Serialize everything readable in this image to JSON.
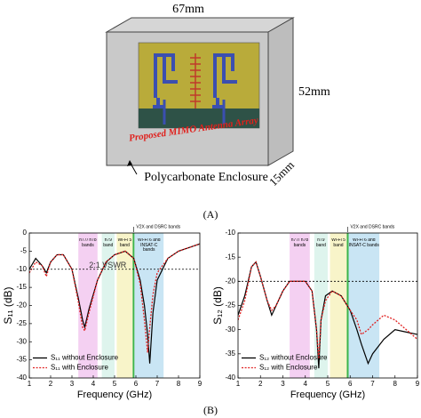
{
  "diagram": {
    "width_label": "67mm",
    "height_label": "52mm",
    "depth_label": "15mm",
    "antenna_label": "Proposed MIMO Antenna Array",
    "enclosure_label": "Polycarbonate Enclosure",
    "panel_label": "(A)"
  },
  "chart_panel_label": "(B)",
  "chart_data": [
    {
      "type": "line",
      "x_label": "Frequency (GHz)",
      "y_label": "S₁₁ (dB)",
      "xlim": [
        1,
        9
      ],
      "xticks": [
        1,
        2,
        3,
        4,
        5,
        6,
        7,
        8,
        9
      ],
      "ylim": [
        -40,
        0
      ],
      "yticks": [
        0,
        -5,
        -10,
        -15,
        -20,
        -25,
        -30,
        -35,
        -40
      ],
      "x": [
        1,
        1.3,
        1.6,
        1.8,
        2.0,
        2.3,
        2.6,
        3.0,
        3.3,
        3.5,
        3.6,
        3.8,
        4.2,
        4.6,
        5.0,
        5.5,
        5.9,
        6.2,
        6.4,
        6.55,
        6.65,
        6.8,
        7.0,
        7.5,
        8,
        8.5,
        9
      ],
      "series": [
        {
          "name": "S₁₁ without Enclosure",
          "color": "#000000",
          "style": "solid",
          "values": [
            -10,
            -7,
            -9,
            -11,
            -8,
            -6,
            -6,
            -10,
            -18,
            -24,
            -26,
            -21,
            -13,
            -8,
            -6,
            -5,
            -7,
            -13,
            -20,
            -28,
            -36,
            -22,
            -13,
            -7,
            -5,
            -4,
            -3
          ]
        },
        {
          "name": "S₁₁ with Enclosure",
          "color": "#e02020",
          "style": "dotted",
          "values": [
            -11,
            -8,
            -9,
            -12,
            -8,
            -6,
            -6,
            -10,
            -19,
            -26,
            -27,
            -22,
            -13,
            -8,
            -6,
            -5,
            -7,
            -14,
            -24,
            -33,
            -26,
            -17,
            -11,
            -7,
            -5,
            -4,
            -3
          ]
        }
      ],
      "bands": [
        {
          "name": "n77/ n78 bands",
          "x": [
            3.3,
            4.2
          ],
          "color": "#f2c8f0"
        },
        {
          "name": "n79 band",
          "x": [
            4.4,
            5.0
          ],
          "color": "#d8f2ea"
        },
        {
          "name": "Wi-Fi 5 band",
          "x": [
            5.1,
            5.85
          ],
          "color": "#f7f2c0"
        },
        {
          "name": "Wi-Fi 6 and INSAT-C bands",
          "x": [
            5.93,
            7.3
          ],
          "color": "#bfe0f2"
        }
      ],
      "marker_band": {
        "name": "V2X and DSRC bands",
        "x": [
          5.85,
          5.93
        ],
        "color": "#3cb44b"
      },
      "reference_line": {
        "value": -10,
        "label": "2:1 VSWR"
      },
      "legend": "lower left"
    },
    {
      "type": "line",
      "x_label": "Frequency (GHz)",
      "y_label": "S₁₂ (dB)",
      "xlim": [
        1,
        9
      ],
      "xticks": [
        1,
        2,
        3,
        4,
        5,
        6,
        7,
        8,
        9
      ],
      "ylim": [
        -40,
        -10
      ],
      "yticks": [
        -10,
        -15,
        -20,
        -25,
        -30,
        -35,
        -40
      ],
      "x": [
        1,
        1.3,
        1.6,
        1.8,
        2.0,
        2.3,
        2.5,
        2.7,
        3.0,
        3.3,
        3.6,
        4.0,
        4.3,
        4.5,
        4.6,
        4.7,
        4.9,
        5.2,
        5.6,
        6.0,
        6.3,
        6.5,
        6.8,
        7.0,
        7.5,
        8,
        8.5,
        9
      ],
      "series": [
        {
          "name": "S₁₂ without Enclosure",
          "color": "#000000",
          "style": "solid",
          "values": [
            -27,
            -23,
            -17,
            -16,
            -19,
            -24,
            -27,
            -25,
            -22,
            -20,
            -20,
            -20,
            -22,
            -30,
            -38,
            -28,
            -23,
            -22,
            -23,
            -26,
            -30,
            -33,
            -37,
            -35,
            -32,
            -30,
            -30.5,
            -31
          ]
        },
        {
          "name": "S₁₂ with Enclosure",
          "color": "#e02020",
          "style": "dotted",
          "values": [
            -28,
            -24,
            -17,
            -16,
            -19,
            -24,
            -26,
            -25,
            -22,
            -20,
            -20,
            -20,
            -22,
            -30,
            -36,
            -28,
            -24,
            -22,
            -23,
            -26,
            -28,
            -31,
            -30,
            -29,
            -27,
            -28,
            -30,
            -32
          ]
        }
      ],
      "bands": [
        {
          "name": "n77/ n78 bands",
          "x": [
            3.3,
            4.2
          ],
          "color": "#f2c8f0"
        },
        {
          "name": "n79 band",
          "x": [
            4.4,
            5.0
          ],
          "color": "#d8f2ea"
        },
        {
          "name": "Wi-Fi 5 band",
          "x": [
            5.1,
            5.85
          ],
          "color": "#f7f2c0"
        },
        {
          "name": "Wi-Fi 6 and INSAT-C bands",
          "x": [
            5.93,
            7.3
          ],
          "color": "#bfe0f2"
        }
      ],
      "marker_band": {
        "name": "V2X and DSRC bands",
        "x": [
          5.85,
          5.93
        ],
        "color": "#3cb44b"
      },
      "reference_line": {
        "value": -20
      },
      "legend": "lower left"
    }
  ]
}
